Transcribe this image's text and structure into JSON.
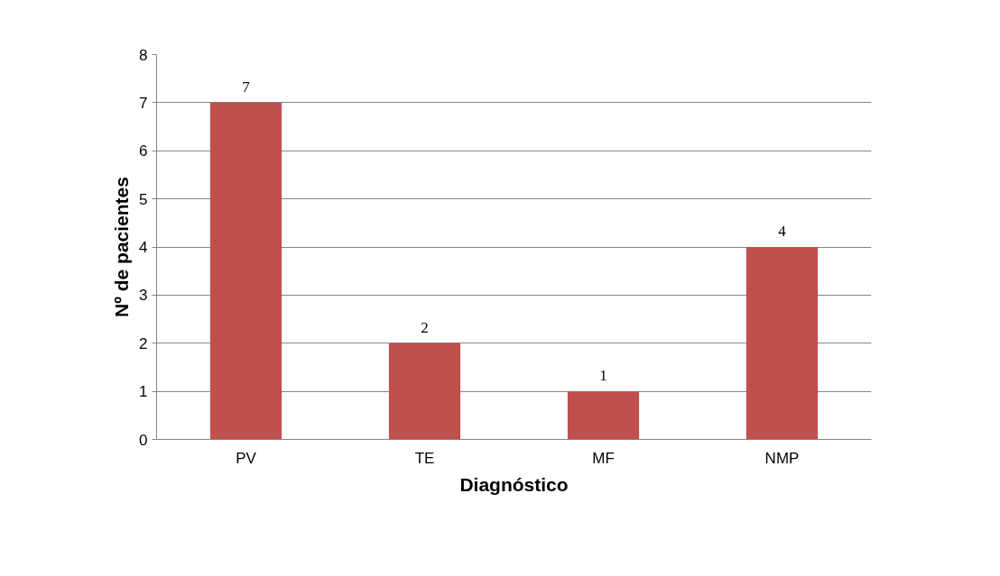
{
  "chart_data": {
    "type": "bar",
    "xlabel": "Diagnóstico",
    "ylabel": "Nº de pacientes",
    "categories": [
      "PV",
      "TE",
      "MF",
      "NMP"
    ],
    "values": [
      7,
      2,
      1,
      4
    ],
    "color": "#c0504d",
    "ylim": [
      0,
      8
    ],
    "yticks": [
      0,
      1,
      2,
      3,
      4,
      5,
      6,
      7,
      8
    ],
    "grid": "y",
    "data_labels": true
  }
}
